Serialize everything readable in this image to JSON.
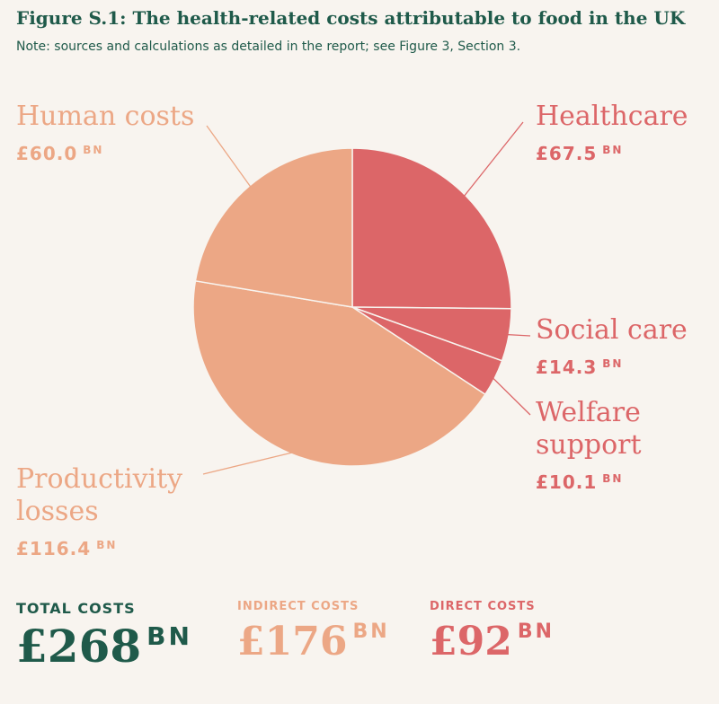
{
  "title": "Figure S.1: The health-related costs attributable to food in the UK",
  "subtitle": "Note: sources and calculations as detailed in the report; see Figure 3, Section 3.",
  "colors": {
    "indirect": "#eca785",
    "direct": "#dc6668",
    "total": "#1f5a4a",
    "background": "#f8f4ef"
  },
  "chart_data": {
    "type": "pie",
    "unit": "BN",
    "series": [
      {
        "name": "Healthcare",
        "value": 67.5,
        "value_label": "£67.5",
        "group": "direct"
      },
      {
        "name": "Social care",
        "value": 14.3,
        "value_label": "£14.3",
        "group": "direct"
      },
      {
        "name": "Welfare support",
        "value": 10.1,
        "value_label": "£10.1",
        "group": "direct"
      },
      {
        "name": "Productivity losses",
        "value": 116.4,
        "value_label": "£116.4",
        "group": "indirect"
      },
      {
        "name": "Human costs",
        "value": 60.0,
        "value_label": "£60.0",
        "group": "indirect"
      }
    ]
  },
  "labels": {
    "healthcare": {
      "name": "Healthcare",
      "amount": "£67.5",
      "unit": "BN"
    },
    "social_care": {
      "name": "Social care",
      "amount": "£14.3",
      "unit": "BN"
    },
    "welfare": {
      "name_line1": "Welfare",
      "name_line2": "support",
      "amount": "£10.1",
      "unit": "BN"
    },
    "productivity": {
      "name_line1": "Productivity",
      "name_line2": "losses",
      "amount": "£116.4",
      "unit": "BN"
    },
    "human": {
      "name": "Human costs",
      "amount": "£60.0",
      "unit": "BN"
    }
  },
  "totals": {
    "total": {
      "label": "TOTAL COSTS",
      "value": "£268",
      "unit": "BN"
    },
    "indirect": {
      "label": "INDIRECT COSTS",
      "value": "£176",
      "unit": "BN"
    },
    "direct": {
      "label": "DIRECT COSTS",
      "value": "£92",
      "unit": "BN"
    }
  }
}
